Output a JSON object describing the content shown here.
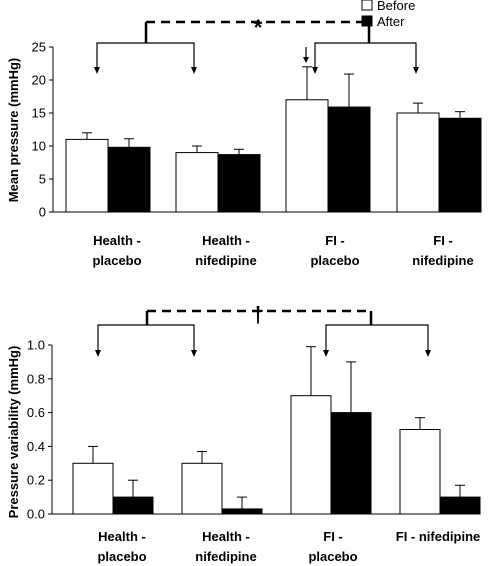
{
  "legend": {
    "items": [
      {
        "label": "Before",
        "color": "#ffffff"
      },
      {
        "label": "After",
        "color": "#000000"
      }
    ]
  },
  "chart_data": [
    {
      "type": "bar",
      "title": "",
      "xlabel": "",
      "ylabel": "Mean pressure (mmHg)",
      "ylim": [
        0,
        25
      ],
      "yticks": [
        "0",
        "5",
        "10",
        "15",
        "20",
        "25"
      ],
      "ytick_values": [
        0,
        5,
        10,
        15,
        20,
        25
      ],
      "categories": [
        [
          "Health -",
          "placebo"
        ],
        [
          "Health -",
          "nifedipine"
        ],
        [
          "FI -",
          "placebo"
        ],
        [
          "FI -",
          "nifedipine"
        ]
      ],
      "series": [
        {
          "name": "Before",
          "color": "#ffffff",
          "values": [
            11.0,
            9.0,
            17.0,
            15.0
          ],
          "errors": [
            1.0,
            1.0,
            5.0,
            1.5
          ]
        },
        {
          "name": "After",
          "color": "#000000",
          "values": [
            9.8,
            8.7,
            15.9,
            14.2
          ],
          "errors": [
            1.3,
            0.8,
            5.0,
            1.0
          ]
        }
      ],
      "significance": "*",
      "grid": false,
      "legend_position": "top-right"
    },
    {
      "type": "bar",
      "title": "",
      "xlabel": "",
      "ylabel": "Pressure variability (mmHg)",
      "ylim": [
        0,
        1.0
      ],
      "yticks": [
        "0.0",
        "0.2",
        "0.4",
        "0.6",
        "0.8",
        "1.0"
      ],
      "ytick_values": [
        0,
        0.2,
        0.4,
        0.6,
        0.8,
        1.0
      ],
      "categories": [
        [
          "Health -",
          "placebo"
        ],
        [
          "Health -",
          "nifedipine"
        ],
        [
          "FI -",
          "placebo"
        ],
        [
          "FI - nifedipine"
        ]
      ],
      "series": [
        {
          "name": "Before",
          "color": "#ffffff",
          "values": [
            0.3,
            0.3,
            0.7,
            0.5
          ],
          "errors": [
            0.1,
            0.07,
            0.29,
            0.07
          ]
        },
        {
          "name": "After",
          "color": "#000000",
          "values": [
            0.1,
            0.03,
            0.6,
            0.1
          ],
          "errors": [
            0.1,
            0.07,
            0.3,
            0.07
          ]
        }
      ],
      "significance": "†",
      "grid": false,
      "legend_position": "none"
    }
  ]
}
